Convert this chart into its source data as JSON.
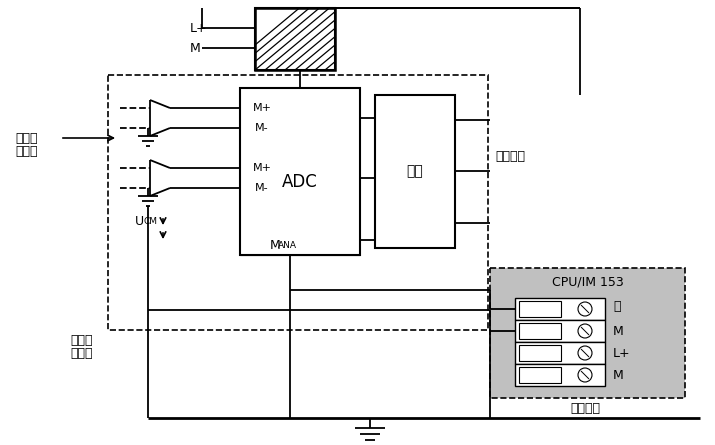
{
  "bg_color": "#ffffff",
  "fig_width": 7.15,
  "fig_height": 4.45,
  "dpi": 100,
  "cpu_bg": "#c0c0c0",
  "labels": {
    "sensor": [
      "非隔离",
      "传感器"
    ],
    "equal_bond": [
      "等电位",
      "连接线"
    ],
    "backplane": "背板总线",
    "ground_bus": "接地干线",
    "adc": "ADC",
    "logic": "逻辑",
    "cpu": "CPU/IM 153",
    "lplus": "L+",
    "m": "M",
    "mplus": "M+",
    "mminus": "M-",
    "mana": "M",
    "ana": "ANA",
    "ucm": "U",
    "cm": "CM",
    "term_labels": [
      "⏚",
      "M",
      "L+",
      "M"
    ]
  }
}
